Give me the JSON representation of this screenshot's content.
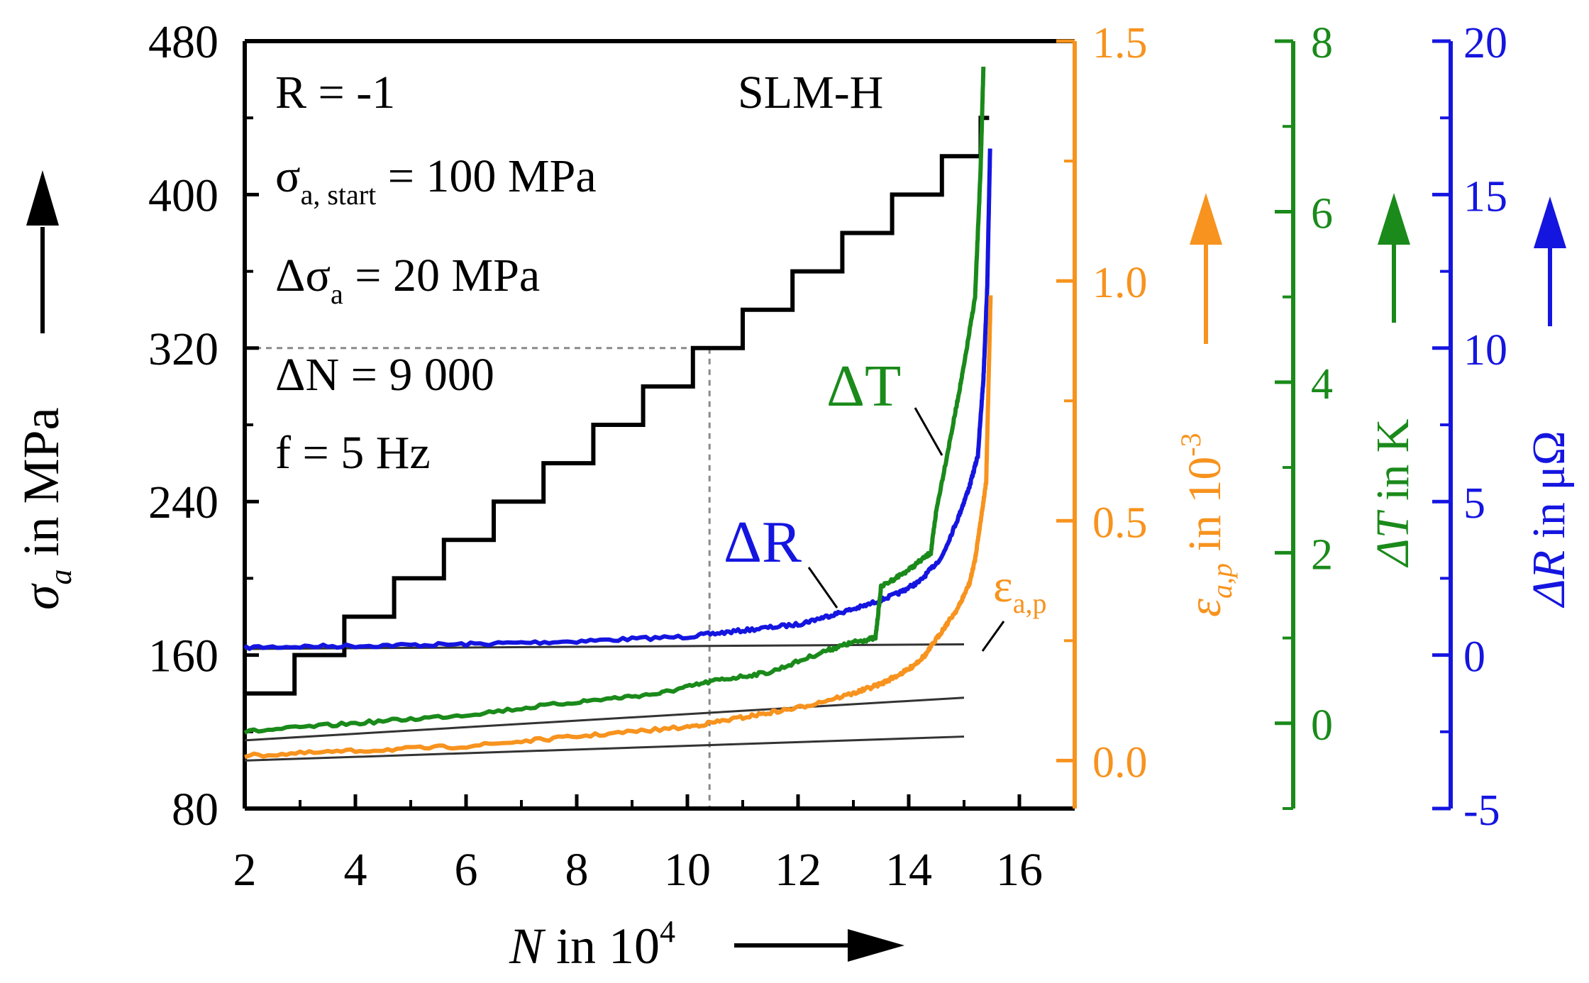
{
  "chart_data": {
    "type": "line",
    "x_axis": {
      "label_var": "N",
      "label_rest": " in 10",
      "label_exp": "4",
      "min": 2,
      "max": 17,
      "tick_labels": [
        "2",
        "4",
        "6",
        "8",
        "10",
        "12",
        "14",
        "16"
      ],
      "tick_values": [
        2,
        4,
        6,
        8,
        10,
        12,
        14,
        16
      ]
    },
    "axes": {
      "stress": {
        "label_var": "σ",
        "label_sub": "a",
        "label_rest": " in MPa",
        "min": 80,
        "max": 480,
        "color": "#000000",
        "tick_labels": [
          "80",
          "160",
          "240",
          "320",
          "400",
          "480"
        ],
        "tick_values": [
          80,
          160,
          240,
          320,
          400,
          480
        ]
      },
      "strain": {
        "label_var": "ε",
        "label_sub": "a,p",
        "label_rest": " in 10",
        "label_exp": "-3",
        "min": -0.1,
        "max": 1.5,
        "color": "#F7931E",
        "tick_labels": [
          "0.0",
          "0.5",
          "1.0",
          "1.5"
        ],
        "tick_values": [
          0.0,
          0.5,
          1.0,
          1.5
        ]
      },
      "temperature": {
        "label_var": "ΔT",
        "label_rest": " in K",
        "min": -1,
        "max": 8,
        "color": "#1A8A1A",
        "tick_labels": [
          "0",
          "2",
          "4",
          "6",
          "8"
        ],
        "tick_values": [
          0,
          2,
          4,
          6,
          8
        ]
      },
      "resistance": {
        "label_var": "ΔR",
        "label_rest": " in μΩ",
        "min": -5,
        "max": 20,
        "color": "#1515E0",
        "tick_labels": [
          "-5",
          "0",
          "5",
          "10",
          "15",
          "20"
        ],
        "tick_values": [
          -5,
          0,
          5,
          10,
          15,
          20
        ]
      }
    },
    "annotations": {
      "r_ratio": "R = -1",
      "sigma_start_main": "σ",
      "sigma_start_sub": "a, start",
      "sigma_start_rest": " = 100 MPa",
      "delta_sigma_main": "Δσ",
      "delta_sigma_sub": "a",
      "delta_sigma_rest": " = 20 MPa",
      "delta_n": "ΔN = 9 000",
      "frequency": "f = 5 Hz",
      "specimen": "SLM-H",
      "label_dT": "ΔT",
      "label_dR": "ΔR",
      "label_eps_main": "ε",
      "label_eps_sub": "a,p"
    },
    "reference_point": {
      "N": 10.4,
      "stress": 320
    },
    "series": [
      {
        "name": "σa",
        "axis": "stress",
        "color": "#000000",
        "style": "step",
        "start_N": 2,
        "step_N": 0.9,
        "start_value": 140,
        "step_value": 20,
        "end_N": 15.3,
        "end_value": 440
      },
      {
        "name": "ΔR",
        "axis": "resistance",
        "color": "#1515E0",
        "x": [
          2,
          4,
          6,
          8,
          10,
          11,
          12,
          12.6,
          13.2,
          13.8,
          14.2,
          14.6,
          14.9,
          15.1,
          15.25,
          15.35,
          15.42,
          15.47
        ],
        "y": [
          0.25,
          0.3,
          0.35,
          0.45,
          0.6,
          0.8,
          1.0,
          1.3,
          1.6,
          2.0,
          2.4,
          3.2,
          4.5,
          5.5,
          6.5,
          9.0,
          12.0,
          16.5
        ]
      },
      {
        "name": "ΔT",
        "axis": "temperature",
        "color": "#1A8A1A",
        "x": [
          2,
          4,
          6,
          8,
          9.5,
          10.5,
          11.5,
          12.5,
          13.0,
          13.4,
          13.5,
          14.0,
          14.4,
          14.5,
          14.8,
          15.0,
          15.2,
          15.3,
          15.35
        ],
        "y": [
          -0.1,
          0.0,
          0.1,
          0.25,
          0.35,
          0.5,
          0.6,
          0.85,
          0.95,
          1.0,
          1.6,
          1.8,
          2.0,
          2.5,
          3.5,
          4.2,
          5.0,
          6.5,
          7.7
        ]
      },
      {
        "name": "εa,p",
        "axis": "strain",
        "color": "#F7931E",
        "x": [
          2,
          4,
          6,
          8,
          10,
          11,
          12,
          13,
          13.5,
          14.0,
          14.3,
          14.6,
          14.9,
          15.1,
          15.2,
          15.3,
          15.4,
          15.48
        ],
        "y": [
          0.01,
          0.02,
          0.03,
          0.05,
          0.07,
          0.09,
          0.11,
          0.14,
          0.16,
          0.19,
          0.22,
          0.27,
          0.32,
          0.37,
          0.42,
          0.5,
          0.58,
          0.97
        ]
      }
    ],
    "baselines": [
      {
        "axis": "resistance",
        "x": [
          2,
          15
        ],
        "y": [
          0.2,
          0.35
        ]
      },
      {
        "axis": "temperature",
        "x": [
          2,
          15
        ],
        "y": [
          -0.2,
          0.3
        ]
      },
      {
        "axis": "strain",
        "x": [
          2,
          15
        ],
        "y": [
          0.0,
          0.05
        ]
      }
    ]
  }
}
